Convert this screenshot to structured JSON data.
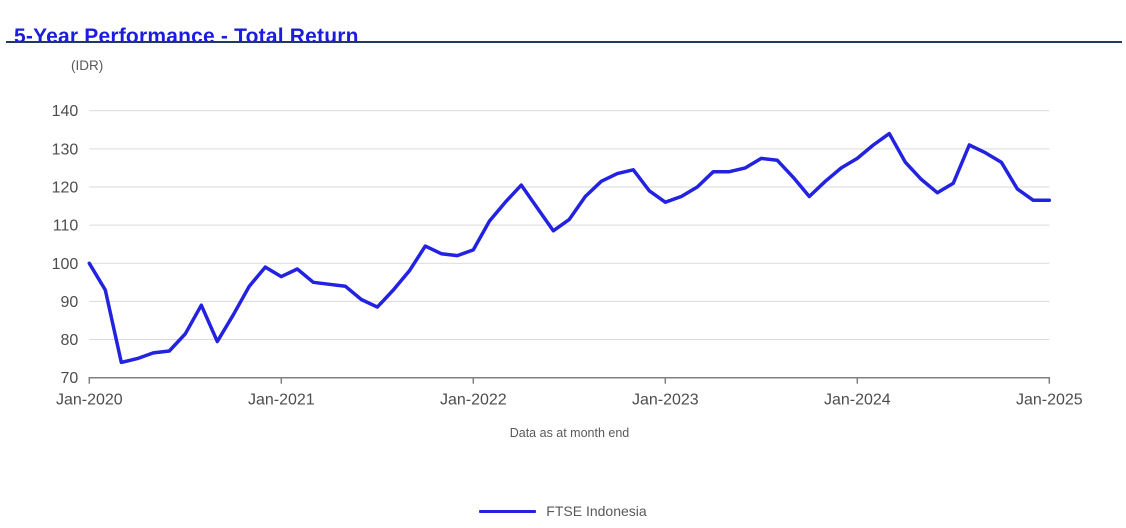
{
  "page": {
    "title": "5-Year Performance - Total Return",
    "unit_label": "(IDR)",
    "x_caption": "Data as at month end"
  },
  "colors": {
    "title": "#1b1cdf",
    "title_underline": "#1f3864",
    "series_line": "#2222e0",
    "gridline": "#d9d9d9",
    "axis": "#808080",
    "tick_text": "#4d4d4d",
    "caption_text": "#595959"
  },
  "legend": {
    "items": [
      {
        "label": "FTSE Indonesia"
      }
    ]
  },
  "chart_data": {
    "type": "line",
    "title": "5-Year Performance - Total Return",
    "ylabel": "(IDR)",
    "xlabel": "Data as at month end",
    "ylim": [
      70,
      140
    ],
    "yticks": [
      70,
      80,
      90,
      100,
      110,
      120,
      130,
      140
    ],
    "xticks": [
      "Jan-2020",
      "Jan-2021",
      "Jan-2022",
      "Jan-2023",
      "Jan-2024",
      "Jan-2025"
    ],
    "x_frequency": "monthly",
    "x_start": "Jan-2020",
    "x_end": "Jan-2025",
    "grid": true,
    "legend_position": "bottom",
    "series": [
      {
        "name": "FTSE Indonesia",
        "color": "#2222e0",
        "values": [
          100,
          93,
          74,
          75,
          76.5,
          77,
          81.5,
          89,
          79.5,
          86.5,
          94,
          99,
          96.5,
          98.5,
          95,
          94.5,
          94,
          90.5,
          88.5,
          93,
          98,
          104.5,
          102.5,
          102,
          103.5,
          111,
          116,
          120.5,
          114.5,
          108.5,
          111.5,
          117.5,
          121.5,
          123.5,
          124.5,
          119,
          116,
          117.5,
          120,
          124,
          124,
          125,
          127.5,
          127,
          122.5,
          117.5,
          121.5,
          125,
          127.5,
          131,
          134,
          126.5,
          122,
          118.5,
          121,
          131,
          129,
          126.5,
          119.5,
          116.5,
          116.5
        ]
      }
    ]
  }
}
